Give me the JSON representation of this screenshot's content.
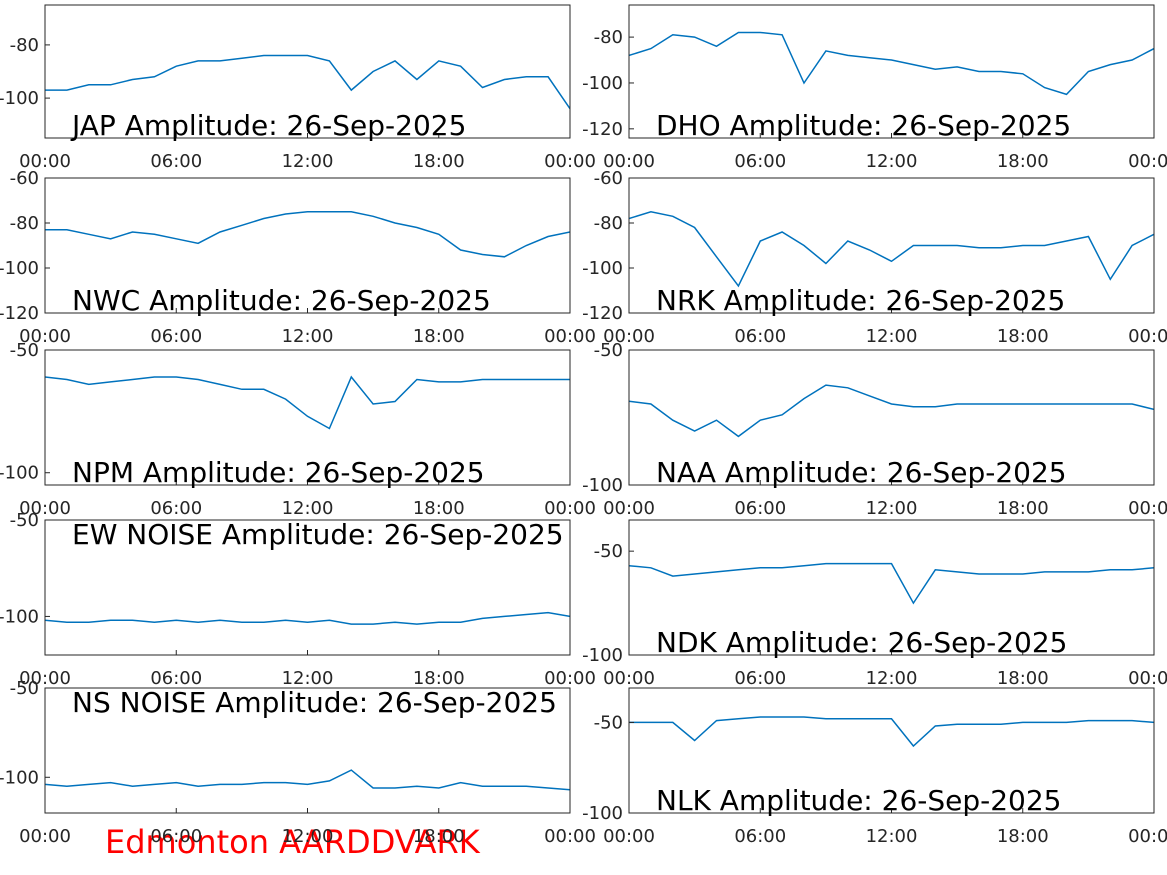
{
  "chart_data": [
    {
      "type": "line",
      "title": "JAP Amplitude: 26-Sep-2025",
      "title_position": "bottom",
      "color": "#0072bd",
      "x": [
        0,
        1,
        2,
        3,
        4,
        5,
        6,
        7,
        8,
        9,
        10,
        11,
        12,
        13,
        14,
        15,
        16,
        17,
        18,
        19,
        20,
        21,
        22,
        23,
        24
      ],
      "values": [
        -97,
        -97,
        -95,
        -95,
        -93,
        -92,
        -88,
        -86,
        -86,
        -85,
        -84,
        -84,
        -84,
        -86,
        -97,
        -90,
        -86,
        -93,
        -86,
        -88,
        -96,
        -93,
        -92,
        -92,
        -104
      ],
      "xlim": [
        0,
        24
      ],
      "xticks": [
        {
          "value": 0,
          "label": "00:00"
        },
        {
          "value": 6,
          "label": "06:00"
        },
        {
          "value": 12,
          "label": "12:00"
        },
        {
          "value": 18,
          "label": "18:00"
        },
        {
          "value": 24,
          "label": "00:00"
        }
      ],
      "ylim": [
        -115,
        -65
      ],
      "yticks": [
        -100,
        -80
      ]
    },
    {
      "type": "line",
      "title": "DHO Amplitude: 26-Sep-2025",
      "title_position": "bottom",
      "color": "#0072bd",
      "x": [
        0,
        1,
        2,
        3,
        4,
        5,
        6,
        7,
        8,
        9,
        10,
        11,
        12,
        13,
        14,
        15,
        16,
        17,
        18,
        19,
        20,
        21,
        22,
        23,
        24
      ],
      "values": [
        -88,
        -85,
        -79,
        -80,
        -84,
        -78,
        -78,
        -79,
        -100,
        -86,
        -88,
        -89,
        -90,
        -92,
        -94,
        -93,
        -95,
        -95,
        -96,
        -102,
        -105,
        -95,
        -92,
        -90,
        -85
      ],
      "xlim": [
        0,
        24
      ],
      "xticks": [
        {
          "value": 0,
          "label": "00:00"
        },
        {
          "value": 6,
          "label": "06:00"
        },
        {
          "value": 12,
          "label": "12:00"
        },
        {
          "value": 18,
          "label": "18:00"
        },
        {
          "value": 24,
          "label": "00:00"
        }
      ],
      "ylim": [
        -124,
        -66
      ],
      "yticks": [
        -120,
        -100,
        -80
      ]
    },
    {
      "type": "line",
      "title": "NWC Amplitude: 26-Sep-2025",
      "title_position": "bottom",
      "color": "#0072bd",
      "x": [
        0,
        1,
        2,
        3,
        4,
        5,
        6,
        7,
        8,
        9,
        10,
        11,
        12,
        13,
        14,
        15,
        16,
        17,
        18,
        19,
        20,
        21,
        22,
        23,
        24
      ],
      "values": [
        -83,
        -83,
        -85,
        -87,
        -84,
        -85,
        -87,
        -89,
        -84,
        -81,
        -78,
        -76,
        -75,
        -75,
        -75,
        -77,
        -80,
        -82,
        -85,
        -92,
        -94,
        -95,
        -90,
        -86,
        -84
      ],
      "xlim": [
        0,
        24
      ],
      "xticks": [
        {
          "value": 0,
          "label": "00:00"
        },
        {
          "value": 6,
          "label": "06:00"
        },
        {
          "value": 12,
          "label": "12:00"
        },
        {
          "value": 18,
          "label": "18:00"
        },
        {
          "value": 24,
          "label": "00:00"
        }
      ],
      "ylim": [
        -120,
        -60
      ],
      "yticks": [
        -120,
        -100,
        -80,
        -60
      ]
    },
    {
      "type": "line",
      "title": "NRK Amplitude: 26-Sep-2025",
      "title_position": "bottom",
      "color": "#0072bd",
      "x": [
        0,
        1,
        2,
        3,
        4,
        5,
        6,
        7,
        8,
        9,
        10,
        11,
        12,
        13,
        14,
        15,
        16,
        17,
        18,
        19,
        20,
        21,
        22,
        23,
        24
      ],
      "values": [
        -78,
        -75,
        -77,
        -82,
        -95,
        -108,
        -88,
        -84,
        -90,
        -98,
        -88,
        -92,
        -97,
        -90,
        -90,
        -90,
        -91,
        -91,
        -90,
        -90,
        -88,
        -86,
        -105,
        -90,
        -85
      ],
      "xlim": [
        0,
        24
      ],
      "xticks": [
        {
          "value": 0,
          "label": "00:00"
        },
        {
          "value": 6,
          "label": "06:00"
        },
        {
          "value": 12,
          "label": "12:00"
        },
        {
          "value": 18,
          "label": "18:00"
        },
        {
          "value": 24,
          "label": "00:00"
        }
      ],
      "ylim": [
        -120,
        -60
      ],
      "yticks": [
        -120,
        -100,
        -80,
        -60
      ]
    },
    {
      "type": "line",
      "title": "NPM Amplitude: 26-Sep-2025",
      "title_position": "bottom",
      "color": "#0072bd",
      "x": [
        0,
        1,
        2,
        3,
        4,
        5,
        6,
        7,
        8,
        9,
        10,
        11,
        12,
        13,
        14,
        15,
        16,
        17,
        18,
        19,
        20,
        21,
        22,
        23,
        24
      ],
      "values": [
        -61,
        -62,
        -64,
        -63,
        -62,
        -61,
        -61,
        -62,
        -64,
        -66,
        -66,
        -70,
        -77,
        -82,
        -61,
        -72,
        -71,
        -62,
        -63,
        -63,
        -62,
        -62,
        -62,
        -62,
        -62
      ],
      "xlim": [
        0,
        24
      ],
      "xticks": [
        {
          "value": 0,
          "label": "00:00"
        },
        {
          "value": 6,
          "label": "06:00"
        },
        {
          "value": 12,
          "label": "12:00"
        },
        {
          "value": 18,
          "label": "18:00"
        },
        {
          "value": 24,
          "label": "00:00"
        }
      ],
      "ylim": [
        -105,
        -50
      ],
      "yticks": [
        -100,
        -50
      ]
    },
    {
      "type": "line",
      "title": "NAA Amplitude: 26-Sep-2025",
      "title_position": "bottom",
      "color": "#0072bd",
      "x": [
        0,
        1,
        2,
        3,
        4,
        5,
        6,
        7,
        8,
        9,
        10,
        11,
        12,
        13,
        14,
        15,
        16,
        17,
        18,
        19,
        20,
        21,
        22,
        23,
        24
      ],
      "values": [
        -69,
        -70,
        -76,
        -80,
        -76,
        -82,
        -76,
        -74,
        -68,
        -63,
        -64,
        -67,
        -70,
        -71,
        -71,
        -70,
        -70,
        -70,
        -70,
        -70,
        -70,
        -70,
        -70,
        -70,
        -72
      ],
      "xlim": [
        0,
        24
      ],
      "xticks": [
        {
          "value": 0,
          "label": "00:00"
        },
        {
          "value": 6,
          "label": "06:00"
        },
        {
          "value": 12,
          "label": "12:00"
        },
        {
          "value": 18,
          "label": "18:00"
        },
        {
          "value": 24,
          "label": "00:00"
        }
      ],
      "ylim": [
        -100,
        -50
      ],
      "yticks": [
        -100,
        -50
      ]
    },
    {
      "type": "line",
      "title": "EW NOISE Amplitude: 26-Sep-2025",
      "title_position": "top",
      "color": "#0072bd",
      "x": [
        0,
        1,
        2,
        3,
        4,
        5,
        6,
        7,
        8,
        9,
        10,
        11,
        12,
        13,
        14,
        15,
        16,
        17,
        18,
        19,
        20,
        21,
        22,
        23,
        24
      ],
      "values": [
        -102,
        -103,
        -103,
        -102,
        -102,
        -103,
        -102,
        -103,
        -102,
        -103,
        -103,
        -102,
        -103,
        -102,
        -104,
        -104,
        -103,
        -104,
        -103,
        -103,
        -101,
        -100,
        -99,
        -98,
        -100
      ],
      "xlim": [
        0,
        24
      ],
      "xticks": [
        {
          "value": 0,
          "label": "00:00"
        },
        {
          "value": 6,
          "label": "06:00"
        },
        {
          "value": 12,
          "label": "12:00"
        },
        {
          "value": 18,
          "label": "18:00"
        },
        {
          "value": 24,
          "label": "00:00"
        }
      ],
      "ylim": [
        -120,
        -50
      ],
      "yticks": [
        -100,
        -50
      ]
    },
    {
      "type": "line",
      "title": "NDK Amplitude: 26-Sep-2025",
      "title_position": "bottom",
      "color": "#0072bd",
      "x": [
        0,
        1,
        2,
        3,
        4,
        5,
        6,
        7,
        8,
        9,
        10,
        11,
        12,
        13,
        14,
        15,
        16,
        17,
        18,
        19,
        20,
        21,
        22,
        23,
        24
      ],
      "values": [
        -57,
        -58,
        -62,
        -61,
        -60,
        -59,
        -58,
        -58,
        -57,
        -56,
        -56,
        -56,
        -56,
        -75,
        -59,
        -60,
        -61,
        -61,
        -61,
        -60,
        -60,
        -60,
        -59,
        -59,
        -58
      ],
      "xlim": [
        0,
        24
      ],
      "xticks": [
        {
          "value": 0,
          "label": "00:00"
        },
        {
          "value": 6,
          "label": "06:00"
        },
        {
          "value": 12,
          "label": "12:00"
        },
        {
          "value": 18,
          "label": "18:00"
        },
        {
          "value": 24,
          "label": "00:00"
        }
      ],
      "ylim": [
        -100,
        -35
      ],
      "yticks": [
        -100,
        -50
      ]
    },
    {
      "type": "line",
      "title": "NS NOISE Amplitude: 26-Sep-2025",
      "title_position": "top",
      "color": "#0072bd",
      "x": [
        0,
        1,
        2,
        3,
        4,
        5,
        6,
        7,
        8,
        9,
        10,
        11,
        12,
        13,
        14,
        15,
        16,
        17,
        18,
        19,
        20,
        21,
        22,
        23,
        24
      ],
      "values": [
        -104,
        -105,
        -104,
        -103,
        -105,
        -104,
        -103,
        -105,
        -104,
        -104,
        -103,
        -103,
        -104,
        -102,
        -96,
        -106,
        -106,
        -105,
        -106,
        -103,
        -105,
        -105,
        -105,
        -106,
        -107
      ],
      "xlim": [
        0,
        24
      ],
      "xticks": [
        {
          "value": 0,
          "label": "00:00"
        },
        {
          "value": 6,
          "label": "06:00"
        },
        {
          "value": 12,
          "label": "12:00"
        },
        {
          "value": 18,
          "label": "18:00"
        },
        {
          "value": 24,
          "label": "00:00"
        }
      ],
      "ylim": [
        -120,
        -50
      ],
      "yticks": [
        -100,
        -50
      ]
    },
    {
      "type": "line",
      "title": "NLK Amplitude: 26-Sep-2025",
      "title_position": "bottom",
      "color": "#0072bd",
      "x": [
        0,
        1,
        2,
        3,
        4,
        5,
        6,
        7,
        8,
        9,
        10,
        11,
        12,
        13,
        14,
        15,
        16,
        17,
        18,
        19,
        20,
        21,
        22,
        23,
        24
      ],
      "values": [
        -50,
        -50,
        -50,
        -60,
        -49,
        -48,
        -47,
        -47,
        -47,
        -48,
        -48,
        -48,
        -48,
        -63,
        -52,
        -51,
        -51,
        -51,
        -50,
        -50,
        -50,
        -49,
        -49,
        -49,
        -50
      ],
      "xlim": [
        0,
        24
      ],
      "xticks": [
        {
          "value": 0,
          "label": "00:00"
        },
        {
          "value": 6,
          "label": "06:00"
        },
        {
          "value": 12,
          "label": "12:00"
        },
        {
          "value": 18,
          "label": "18:00"
        },
        {
          "value": 24,
          "label": "00:00"
        }
      ],
      "ylim": [
        -100,
        -31
      ],
      "yticks": [
        -100,
        -50
      ]
    }
  ],
  "caption": "Edmonton AARDDVARK"
}
